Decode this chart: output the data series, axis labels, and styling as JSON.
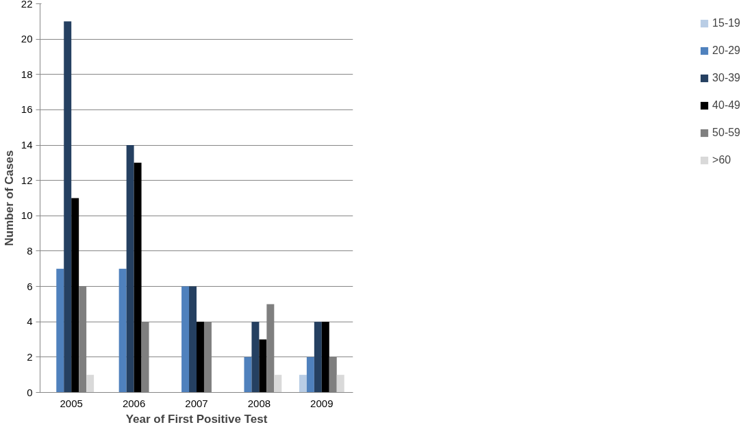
{
  "chart_data": {
    "type": "bar",
    "xlabel": "Year of First Positive Test",
    "ylabel": "Number of Cases",
    "categories": [
      "2005",
      "2006",
      "2007",
      "2008",
      "2009"
    ],
    "series": [
      {
        "name": "15-19",
        "color": "#b9cde5",
        "values": [
          0,
          0,
          0,
          0,
          1
        ]
      },
      {
        "name": "20-29",
        "color": "#4f81bd",
        "values": [
          7,
          7,
          6,
          2,
          2
        ]
      },
      {
        "name": "30-39",
        "color": "#254061",
        "values": [
          21,
          14,
          6,
          4,
          4
        ]
      },
      {
        "name": "40-49",
        "color": "#000000",
        "values": [
          11,
          13,
          4,
          3,
          4
        ]
      },
      {
        "name": "50-59",
        "color": "#7f7f7f",
        "values": [
          6,
          4,
          4,
          5,
          2
        ]
      },
      {
        "name": ">60",
        "color": "#d9d9d9",
        "values": [
          1,
          0,
          0,
          1,
          1
        ]
      }
    ],
    "ylim": [
      0,
      22
    ],
    "yticks": [
      0,
      2,
      4,
      6,
      8,
      10,
      12,
      14,
      16,
      18,
      20,
      22
    ],
    "grid": "y",
    "legend": "right"
  }
}
